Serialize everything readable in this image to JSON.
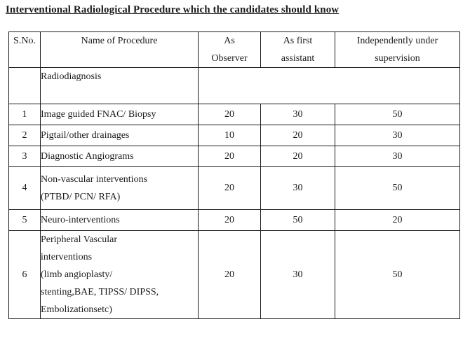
{
  "title": "Interventional Radiological Procedure which the candidates should know",
  "table": {
    "headers": {
      "sno": "S.No.",
      "name": "Name of Procedure",
      "observer": "As\nObserver",
      "assistant": "As first\nassistant",
      "independent": "Independently under\nsupervision"
    },
    "section_row": {
      "sno": "",
      "name": "Radiodiagnosis"
    },
    "rows": [
      {
        "sno": "1",
        "name": "Image guided FNAC/ Biopsy",
        "observer": "20",
        "assistant": "30",
        "independent": "50"
      },
      {
        "sno": "2",
        "name": "Pigtail/other drainages",
        "observer": "10",
        "assistant": "20",
        "independent": "30"
      },
      {
        "sno": "3",
        "name": "Diagnostic Angiograms",
        "observer": "20",
        "assistant": "20",
        "independent": "30"
      },
      {
        "sno": "4",
        "name": "Non-vascular interventions\n(PTBD/ PCN/ RFA)",
        "observer": "20",
        "assistant": "30",
        "independent": "50"
      },
      {
        "sno": "5",
        "name": "Neuro-interventions",
        "observer": "20",
        "assistant": "50",
        "independent": "20"
      },
      {
        "sno": "6",
        "name": "Peripheral Vascular\ninterventions\n(limb angioplasty/\nstenting,BAE, TIPSS/ DIPSS,\nEmbolizationsetc)",
        "observer": "20",
        "assistant": "30",
        "independent": "50"
      }
    ]
  },
  "colors": {
    "text": "#1c1c1c",
    "border": "#1c1c1c",
    "background": "#ffffff"
  }
}
